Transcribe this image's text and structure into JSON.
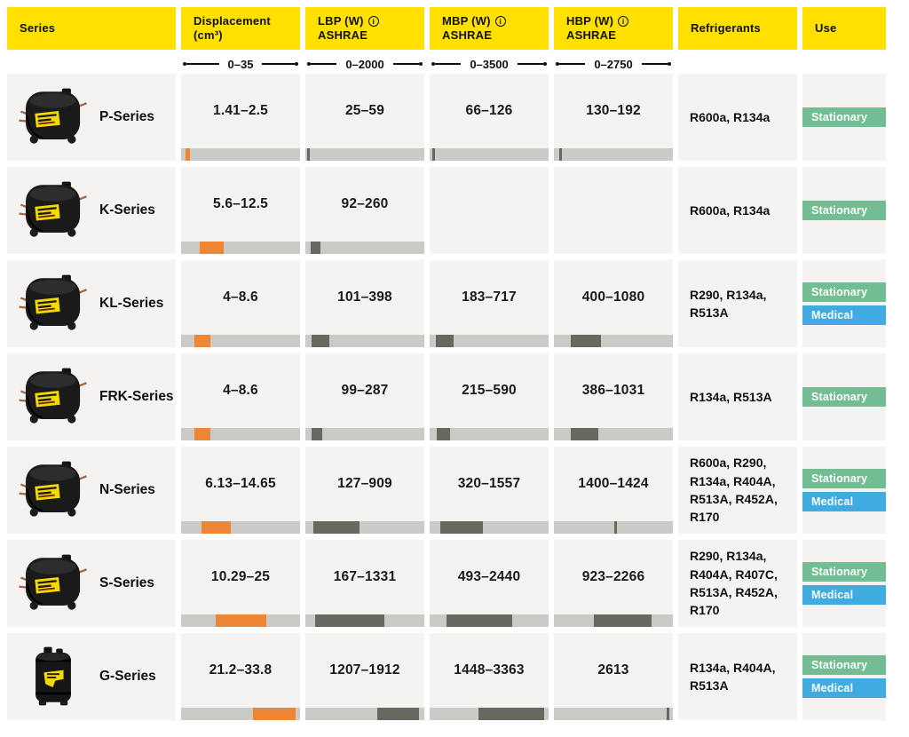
{
  "colors": {
    "header_bg": "#FFE000",
    "header_text": "#111111",
    "cell_bg": "#F4F3F1",
    "bar_track": "#CBCAC7",
    "bar_displacement": "#EE8633",
    "bar_power": "#68685F",
    "badges": {
      "Stationary": "#72BD94",
      "Medical": "#3FABE0"
    }
  },
  "columns": [
    {
      "key": "series",
      "label": "Series"
    },
    {
      "key": "displacement",
      "label": "Displacement (cm³)",
      "scale_label": "0–35",
      "max": 35,
      "bar": "displacement"
    },
    {
      "key": "lbp",
      "label": "LBP (W)",
      "sublabel": "ASHRAE",
      "info_icon": true,
      "scale_label": "0–2000",
      "max": 2000,
      "bar": "power"
    },
    {
      "key": "mbp",
      "label": "MBP (W)",
      "sublabel": "ASHRAE",
      "info_icon": true,
      "scale_label": "0–3500",
      "max": 3500,
      "bar": "power"
    },
    {
      "key": "hbp",
      "label": "HBP (W)",
      "sublabel": "ASHRAE",
      "info_icon": true,
      "scale_label": "0–2750",
      "max": 2750,
      "bar": "power"
    },
    {
      "key": "refrigerants",
      "label": "Refrigerants"
    },
    {
      "key": "use",
      "label": "Use"
    }
  ],
  "rows": [
    {
      "series": "P-Series",
      "image": "pot",
      "displacement": {
        "text": "1.41–2.5",
        "min": 1.41,
        "max": 2.5
      },
      "lbp": {
        "text": "25–59",
        "min": 25,
        "max": 59
      },
      "mbp": {
        "text": "66–126",
        "min": 66,
        "max": 126
      },
      "hbp": {
        "text": "130–192",
        "min": 130,
        "max": 192
      },
      "refrigerants": "R600a, R134a",
      "use": [
        "Stationary"
      ]
    },
    {
      "series": "K-Series",
      "image": "pot",
      "displacement": {
        "text": "5.6–12.5",
        "min": 5.6,
        "max": 12.5
      },
      "lbp": {
        "text": "92–260",
        "min": 92,
        "max": 260
      },
      "mbp": null,
      "hbp": null,
      "refrigerants": "R600a, R134a",
      "use": [
        "Stationary"
      ]
    },
    {
      "series": "KL-Series",
      "image": "pot",
      "displacement": {
        "text": "4–8.6",
        "min": 4,
        "max": 8.6
      },
      "lbp": {
        "text": "101–398",
        "min": 101,
        "max": 398
      },
      "mbp": {
        "text": "183–717",
        "min": 183,
        "max": 717
      },
      "hbp": {
        "text": "400–1080",
        "min": 400,
        "max": 1080
      },
      "refrigerants": "R290, R134a, R513A",
      "use": [
        "Stationary",
        "Medical"
      ]
    },
    {
      "series": "FRK-Series",
      "image": "pot",
      "displacement": {
        "text": "4–8.6",
        "min": 4,
        "max": 8.6
      },
      "lbp": {
        "text": "99–287",
        "min": 99,
        "max": 287
      },
      "mbp": {
        "text": "215–590",
        "min": 215,
        "max": 590
      },
      "hbp": {
        "text": "386–1031",
        "min": 386,
        "max": 1031
      },
      "refrigerants": "R134a, R513A",
      "use": [
        "Stationary"
      ]
    },
    {
      "series": "N-Series",
      "image": "pot",
      "displacement": {
        "text": "6.13–14.65",
        "min": 6.13,
        "max": 14.65
      },
      "lbp": {
        "text": "127–909",
        "min": 127,
        "max": 909
      },
      "mbp": {
        "text": "320–1557",
        "min": 320,
        "max": 1557
      },
      "hbp": {
        "text": "1400–1424",
        "min": 1400,
        "max": 1424
      },
      "refrigerants": "R600a, R290, R134a, R404A, R513A, R452A, R170",
      "use": [
        "Stationary",
        "Medical"
      ]
    },
    {
      "series": "S-Series",
      "image": "pot",
      "displacement": {
        "text": "10.29–25",
        "min": 10.29,
        "max": 25
      },
      "lbp": {
        "text": "167–1331",
        "min": 167,
        "max": 1331
      },
      "mbp": {
        "text": "493–2440",
        "min": 493,
        "max": 2440
      },
      "hbp": {
        "text": "923–2266",
        "min": 923,
        "max": 2266
      },
      "refrigerants": "R290, R134a, R404A, R407C, R513A, R452A, R170",
      "use": [
        "Stationary",
        "Medical"
      ]
    },
    {
      "series": "G-Series",
      "image": "tall",
      "displacement": {
        "text": "21.2–33.8",
        "min": 21.2,
        "max": 33.8
      },
      "lbp": {
        "text": "1207–1912",
        "min": 1207,
        "max": 1912
      },
      "mbp": {
        "text": "1448–3363",
        "min": 1448,
        "max": 3363
      },
      "hbp": {
        "text": "2613",
        "min": 2613,
        "max": 2613
      },
      "refrigerants": "R134a, R404A, R513A",
      "use": [
        "Stationary",
        "Medical"
      ]
    }
  ],
  "chart_data": {
    "type": "table",
    "title": "Compressor series comparison",
    "columns": [
      "Series",
      "Displacement (cm³) 0–35",
      "LBP (W) ASHRAE 0–2000",
      "MBP (W) ASHRAE 0–3500",
      "HBP (W) ASHRAE 0–2750",
      "Refrigerants",
      "Use"
    ],
    "series": [
      {
        "name": "P-Series",
        "displacement": [
          1.41,
          2.5
        ],
        "lbp": [
          25,
          59
        ],
        "mbp": [
          66,
          126
        ],
        "hbp": [
          130,
          192
        ],
        "refrigerants": "R600a, R134a",
        "use": [
          "Stationary"
        ]
      },
      {
        "name": "K-Series",
        "displacement": [
          5.6,
          12.5
        ],
        "lbp": [
          92,
          260
        ],
        "mbp": null,
        "hbp": null,
        "refrigerants": "R600a, R134a",
        "use": [
          "Stationary"
        ]
      },
      {
        "name": "KL-Series",
        "displacement": [
          4,
          8.6
        ],
        "lbp": [
          101,
          398
        ],
        "mbp": [
          183,
          717
        ],
        "hbp": [
          400,
          1080
        ],
        "refrigerants": "R290, R134a, R513A",
        "use": [
          "Stationary",
          "Medical"
        ]
      },
      {
        "name": "FRK-Series",
        "displacement": [
          4,
          8.6
        ],
        "lbp": [
          99,
          287
        ],
        "mbp": [
          215,
          590
        ],
        "hbp": [
          386,
          1031
        ],
        "refrigerants": "R134a, R513A",
        "use": [
          "Stationary"
        ]
      },
      {
        "name": "N-Series",
        "displacement": [
          6.13,
          14.65
        ],
        "lbp": [
          127,
          909
        ],
        "mbp": [
          320,
          1557
        ],
        "hbp": [
          1400,
          1424
        ],
        "refrigerants": "R600a, R290, R134a, R404A, R513A, R452A, R170",
        "use": [
          "Stationary",
          "Medical"
        ]
      },
      {
        "name": "S-Series",
        "displacement": [
          10.29,
          25
        ],
        "lbp": [
          167,
          1331
        ],
        "mbp": [
          493,
          2440
        ],
        "hbp": [
          923,
          2266
        ],
        "refrigerants": "R290, R134a, R404A, R407C, R513A, R452A, R170",
        "use": [
          "Stationary",
          "Medical"
        ]
      },
      {
        "name": "G-Series",
        "displacement": [
          21.2,
          33.8
        ],
        "lbp": [
          1207,
          1912
        ],
        "mbp": [
          1448,
          3363
        ],
        "hbp": [
          2613,
          2613
        ],
        "refrigerants": "R134a, R404A, R513A",
        "use": [
          "Stationary",
          "Medical"
        ]
      }
    ],
    "axis_ranges": {
      "displacement": [
        0,
        35
      ],
      "lbp": [
        0,
        2000
      ],
      "mbp": [
        0,
        3500
      ],
      "hbp": [
        0,
        2750
      ]
    }
  }
}
